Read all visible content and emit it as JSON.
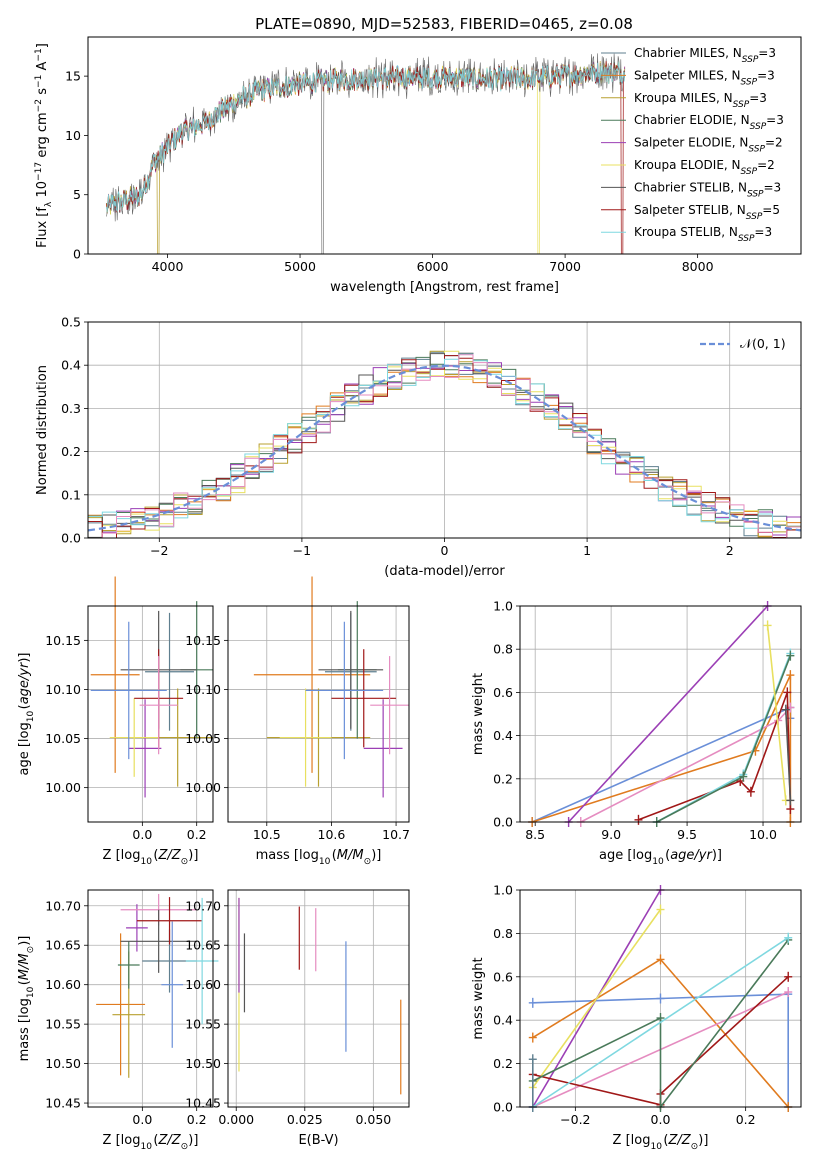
{
  "figure": {
    "title": "PLATE=0890, MJD=52583, FIBERID=0465, z=0.08"
  },
  "colors": {
    "chabrier_miles": "#5f7f8f",
    "salpeter_miles": "#e07b1f",
    "kroupa_miles": "#b8a030",
    "chabrier_elodie": "#4a7a5a",
    "salpeter_elodie": "#9b3fb5",
    "kroupa_elodie": "#e8e060",
    "chabrier_stelib": "#555555",
    "salpeter_stelib": "#a01818",
    "kroupa_stelib": "#7fd8e0",
    "normal_line": "#6a8fd8",
    "grid": "#b0b0b0"
  },
  "chart_data": [
    {
      "id": "spectrum",
      "type": "line",
      "xlabel": "wavelength [Angstrom, rest frame]",
      "ylabel": "Flux [f_λ 10^-17 erg cm^-2 s^-1 A^-1]",
      "xlim": [
        3400,
        8780
      ],
      "ylim": [
        0,
        18.3
      ],
      "xticks": [
        4000,
        5000,
        6000,
        7000,
        8000
      ],
      "yticks": [
        0,
        5,
        10,
        15
      ],
      "grid": false,
      "legend_placement": "upper right",
      "legend": [
        {
          "label": "Chabrier MILES, N_SSP=3",
          "color_key": "chabrier_miles"
        },
        {
          "label": "Salpeter MILES, N_SSP=3",
          "color_key": "salpeter_miles"
        },
        {
          "label": "Kroupa MILES, N_SSP=3",
          "color_key": "kroupa_miles"
        },
        {
          "label": "Chabrier ELODIE, N_SSP=3",
          "color_key": "chabrier_elodie"
        },
        {
          "label": "Salpeter ELODIE, N_SSP=2",
          "color_key": "salpeter_elodie"
        },
        {
          "label": "Kroupa ELODIE, N_SSP=2",
          "color_key": "kroupa_elodie"
        },
        {
          "label": "Chabrier STELIB, N_SSP=3",
          "color_key": "chabrier_stelib"
        },
        {
          "label": "Salpeter STELIB, N_SSP=5",
          "color_key": "salpeter_stelib"
        },
        {
          "label": "Kroupa STELIB, N_SSP=3",
          "color_key": "kroupa_stelib"
        }
      ],
      "continuum": {
        "wavelength": [
          3540,
          3700,
          3800,
          3900,
          4000,
          4100,
          4300,
          4500,
          4700,
          4900,
          5100,
          5300,
          5500,
          5800,
          6100,
          6300,
          6500,
          6700,
          6900,
          7100,
          7300,
          7450
        ],
        "flux": [
          4.0,
          4.6,
          5.0,
          7.8,
          9.0,
          10.2,
          11.2,
          12.8,
          13.8,
          14.2,
          14.5,
          14.7,
          14.8,
          14.9,
          14.9,
          14.8,
          14.8,
          14.8,
          14.9,
          15.2,
          15.4,
          15.3
        ]
      }
    },
    {
      "id": "residuals",
      "type": "histogram",
      "xlabel": "(data-model)/error",
      "ylabel": "Normed distribution",
      "xlim": [
        -2.5,
        2.5
      ],
      "ylim": [
        0,
        0.5
      ],
      "xticks": [
        -2,
        -1,
        0,
        1,
        2
      ],
      "yticks": [
        0.0,
        0.1,
        0.2,
        0.3,
        0.4,
        0.5
      ],
      "grid": true,
      "legend_placement": "upper right",
      "legend": [
        {
          "label": "𝒩(0, 1)",
          "color_key": "normal_line",
          "style": "dashed"
        }
      ],
      "bin_width": 0.1,
      "reference_curve": "standard normal"
    },
    {
      "id": "age_vs_Z",
      "type": "errorbar",
      "xlabel": "Z [log10(Z/Z⊙)]",
      "ylabel": "age  [log10(age/yr)]",
      "xlim": [
        -0.2,
        0.26
      ],
      "ylim": [
        9.965,
        10.185
      ],
      "xticks": [
        0.0,
        0.2
      ],
      "xticklabels": [
        "0.0",
        "0.2"
      ],
      "yticks": [
        10.0,
        10.05,
        10.1,
        10.15
      ],
      "grid": true,
      "points": [
        {
          "x": 0.1,
          "xerr": 0.09,
          "y": 10.118,
          "yerr": 0.06,
          "color_key": "chabrier_miles"
        },
        {
          "x": -0.1,
          "xerr": 0.09,
          "y": 10.115,
          "yerr": 0.1,
          "color_key": "salpeter_miles"
        },
        {
          "x": 0.13,
          "xerr": 0.13,
          "y": 10.051,
          "yerr": 0.05,
          "color_key": "kroupa_miles"
        },
        {
          "x": 0.2,
          "xerr": 0.06,
          "y": 10.12,
          "yerr": 0.07,
          "color_key": "chabrier_elodie"
        },
        {
          "x": 0.01,
          "xerr": 0.06,
          "y": 10.04,
          "yerr": 0.05,
          "color_key": "salpeter_elodie"
        },
        {
          "x": -0.03,
          "xerr": 0.09,
          "y": 10.051,
          "yerr": 0.04,
          "color_key": "kroupa_elodie"
        },
        {
          "x": 0.06,
          "xerr": 0.14,
          "y": 10.12,
          "yerr": 0.06,
          "color_key": "chabrier_stelib"
        },
        {
          "x": 0.06,
          "xerr": 0.09,
          "y": 10.091,
          "yerr": 0.05,
          "color_key": "salpeter_stelib"
        },
        {
          "x": 0.06,
          "xerr": 0.07,
          "y": 10.084,
          "yerr": 0.05,
          "color_key": "salpeter_elodie_pink"
        },
        {
          "x": -0.05,
          "xerr": 0.14,
          "y": 10.099,
          "yerr": 0.07,
          "color_key": "normal_line"
        }
      ]
    },
    {
      "id": "age_vs_mass",
      "type": "errorbar",
      "xlabel": "mass [log10(M/M⊙)]",
      "xlim": [
        10.44,
        10.72
      ],
      "ylim": [
        9.965,
        10.185
      ],
      "xticks": [
        10.5,
        10.6,
        10.7
      ],
      "xticklabels": [
        "10.5",
        "10.6",
        "10.7"
      ],
      "yticks": [
        10.0,
        10.05,
        10.1,
        10.15
      ],
      "grid": true,
      "points": [
        {
          "x": 10.63,
          "xerr": 0.04,
          "y": 10.118,
          "yerr": 0.06,
          "color_key": "chabrier_miles"
        },
        {
          "x": 10.57,
          "xerr": 0.09,
          "y": 10.115,
          "yerr": 0.1,
          "color_key": "salpeter_miles"
        },
        {
          "x": 10.58,
          "xerr": 0.08,
          "y": 10.051,
          "yerr": 0.05,
          "color_key": "kroupa_miles"
        },
        {
          "x": 10.64,
          "xerr": 0.03,
          "y": 10.12,
          "yerr": 0.07,
          "color_key": "chabrier_elodie"
        },
        {
          "x": 10.68,
          "xerr": 0.03,
          "y": 10.04,
          "yerr": 0.05,
          "color_key": "salpeter_elodie"
        },
        {
          "x": 10.56,
          "xerr": 0.04,
          "y": 10.051,
          "yerr": 0.05,
          "color_key": "kroupa_elodie"
        },
        {
          "x": 10.63,
          "xerr": 0.05,
          "y": 10.12,
          "yerr": 0.06,
          "color_key": "chabrier_stelib"
        },
        {
          "x": 10.65,
          "xerr": 0.05,
          "y": 10.091,
          "yerr": 0.05,
          "color_key": "salpeter_stelib"
        },
        {
          "x": 10.69,
          "xerr": 0.03,
          "y": 10.084,
          "yerr": 0.05,
          "color_key": "salpeter_elodie_pink"
        },
        {
          "x": 10.62,
          "xerr": 0.06,
          "y": 10.099,
          "yerr": 0.07,
          "color_key": "normal_line"
        }
      ]
    },
    {
      "id": "weight_vs_age",
      "type": "line",
      "xlabel": "age  [log10(age/yr)]",
      "ylabel": "mass weight",
      "xlim": [
        8.4,
        10.25
      ],
      "ylim": [
        0,
        1.0
      ],
      "xticks": [
        8.5,
        9.0,
        9.5,
        10.0
      ],
      "xticklabels": [
        "8.5",
        "9.0",
        "9.5",
        "10.0"
      ],
      "yticks": [
        0.0,
        0.2,
        0.4,
        0.6,
        0.8,
        1.0
      ],
      "grid": true,
      "series": [
        {
          "color_key": "normal_line",
          "x": [
            8.48,
            10.18,
            10.18
          ],
          "y": [
            0.0,
            0.53,
            0.48
          ]
        },
        {
          "color_key": "salpeter_miles",
          "x": [
            8.48,
            9.95,
            10.18,
            10.18
          ],
          "y": [
            0.0,
            0.33,
            0.68,
            0.0
          ]
        },
        {
          "color_key": "salpeter_elodie",
          "x": [
            8.72,
            10.03
          ],
          "y": [
            0.0,
            1.0
          ]
        },
        {
          "color_key": "salpeter_elodie_pink",
          "x": [
            8.8,
            10.1,
            10.18
          ],
          "y": [
            0.0,
            0.47,
            0.53
          ]
        },
        {
          "color_key": "salpeter_stelib",
          "x": [
            9.18,
            9.85,
            9.92,
            10.16,
            10.18
          ],
          "y": [
            0.01,
            0.19,
            0.14,
            0.6,
            0.06
          ]
        },
        {
          "color_key": "kroupa_stelib",
          "x": [
            9.3,
            9.87,
            10.18
          ],
          "y": [
            0.0,
            0.22,
            0.78
          ]
        },
        {
          "color_key": "chabrier_elodie",
          "x": [
            9.3,
            9.87,
            10.18
          ],
          "y": [
            0.0,
            0.21,
            0.77
          ]
        },
        {
          "color_key": "kroupa_elodie",
          "x": [
            10.03,
            10.15
          ],
          "y": [
            0.91,
            0.1
          ]
        },
        {
          "color_key": "chabrier_stelib",
          "x": [
            10.15,
            10.18
          ],
          "y": [
            0.52,
            0.1
          ]
        }
      ]
    },
    {
      "id": "mass_vs_Z",
      "type": "errorbar",
      "xlabel": "Z [log10(Z/Z⊙)]",
      "ylabel": "mass [log10(M/M⊙)]",
      "xlim": [
        -0.2,
        0.26
      ],
      "ylim": [
        10.445,
        10.72
      ],
      "xticks": [
        0.0,
        0.2
      ],
      "xticklabels": [
        "0.0",
        "0.2"
      ],
      "yticks": [
        10.45,
        10.5,
        10.55,
        10.6,
        10.65,
        10.7
      ],
      "grid": true,
      "points": [
        {
          "x": 0.1,
          "xerr": 0.1,
          "y": 10.63,
          "yerr": 0.04,
          "color_key": "chabrier_miles"
        },
        {
          "x": -0.08,
          "xerr": 0.09,
          "y": 10.575,
          "yerr": 0.09,
          "color_key": "salpeter_miles"
        },
        {
          "x": -0.05,
          "xerr": 0.06,
          "y": 10.562,
          "yerr": 0.08,
          "color_key": "kroupa_miles"
        },
        {
          "x": -0.05,
          "xerr": 0.04,
          "y": 10.625,
          "yerr": 0.03,
          "color_key": "chabrier_elodie"
        },
        {
          "x": -0.02,
          "xerr": 0.04,
          "y": 10.672,
          "yerr": 0.03,
          "color_key": "salpeter_elodie"
        },
        {
          "x": 0.06,
          "xerr": 0.14,
          "y": 10.695,
          "yerr": 0.02,
          "color_key": "salpeter_elodie_pink"
        },
        {
          "x": 0.06,
          "xerr": 0.14,
          "y": 10.655,
          "yerr": 0.04,
          "color_key": "chabrier_stelib"
        },
        {
          "x": 0.1,
          "xerr": 0.12,
          "y": 10.681,
          "yerr": 0.03,
          "color_key": "salpeter_stelib"
        },
        {
          "x": 0.22,
          "xerr": 0.06,
          "y": 10.63,
          "yerr": 0.08,
          "color_key": "kroupa_stelib"
        },
        {
          "x": 0.11,
          "xerr": 0.04,
          "y": 10.6,
          "yerr": 0.08,
          "color_key": "normal_line"
        }
      ]
    },
    {
      "id": "mass_vs_ebv",
      "type": "errorbar",
      "xlabel": "E(B-V)",
      "xlim": [
        -0.003,
        0.063
      ],
      "ylim": [
        10.445,
        10.72
      ],
      "xticks": [
        0.0,
        0.025,
        0.05
      ],
      "xticklabels": [
        "0.000",
        "0.025",
        "0.050"
      ],
      "yticks": [
        10.45,
        10.5,
        10.55,
        10.6,
        10.65,
        10.7
      ],
      "grid": true,
      "points": [
        {
          "x": 0.001,
          "yerr": 0.11,
          "y": 10.6,
          "color_key": "kroupa_elodie"
        },
        {
          "x": 0.001,
          "yerr": 0.06,
          "y": 10.65,
          "color_key": "salpeter_elodie"
        },
        {
          "x": 0.003,
          "yerr": 0.05,
          "y": 10.615,
          "color_key": "chabrier_stelib"
        },
        {
          "x": 0.023,
          "yerr": 0.04,
          "y": 10.659,
          "color_key": "salpeter_stelib"
        },
        {
          "x": 0.029,
          "yerr": 0.04,
          "y": 10.657,
          "color_key": "salpeter_elodie_pink"
        },
        {
          "x": 0.04,
          "yerr": 0.07,
          "y": 10.585,
          "color_key": "normal_line"
        },
        {
          "x": 0.06,
          "yerr": 0.06,
          "y": 10.521,
          "color_key": "salpeter_miles"
        }
      ]
    },
    {
      "id": "weight_vs_Z",
      "type": "line",
      "xlabel": "Z [log10(Z/Z⊙)]",
      "ylabel": "mass weight",
      "xlim": [
        -0.33,
        0.33
      ],
      "ylim": [
        0,
        1.0
      ],
      "xticks": [
        -0.2,
        0.0,
        0.2
      ],
      "xticklabels": [
        "−0.2",
        "0.0",
        "0.2"
      ],
      "yticks": [
        0.0,
        0.2,
        0.4,
        0.6,
        0.8,
        1.0
      ],
      "grid": true,
      "series": [
        {
          "color_key": "normal_line",
          "x": [
            -0.3,
            0.0,
            0.3,
            0.3
          ],
          "y": [
            0.48,
            0.5,
            0.52,
            0.0
          ]
        },
        {
          "color_key": "salpeter_miles",
          "x": [
            -0.3,
            0.0,
            0.3
          ],
          "y": [
            0.32,
            0.68,
            0.0
          ]
        },
        {
          "color_key": "salpeter_elodie",
          "x": [
            -0.3,
            0.0
          ],
          "y": [
            0.0,
            1.0
          ]
        },
        {
          "color_key": "kroupa_elodie",
          "x": [
            -0.3,
            0.0
          ],
          "y": [
            0.09,
            0.91
          ]
        },
        {
          "color_key": "salpeter_elodie_pink",
          "x": [
            -0.3,
            0.3
          ],
          "y": [
            0.0,
            0.53
          ]
        },
        {
          "color_key": "salpeter_stelib",
          "x": [
            -0.3,
            0.0,
            0.0,
            0.3
          ],
          "y": [
            0.15,
            0.01,
            0.06,
            0.6
          ]
        },
        {
          "color_key": "chabrier_elodie",
          "x": [
            -0.3,
            0.0,
            0.0,
            0.3
          ],
          "y": [
            0.12,
            0.41,
            0.0,
            0.77
          ]
        },
        {
          "color_key": "kroupa_stelib",
          "x": [
            -0.3,
            0.3
          ],
          "y": [
            0.0,
            0.78
          ]
        },
        {
          "color_key": "chabrier_miles",
          "x": [
            -0.3,
            -0.3
          ],
          "y": [
            0.0,
            0.22
          ]
        }
      ]
    }
  ]
}
